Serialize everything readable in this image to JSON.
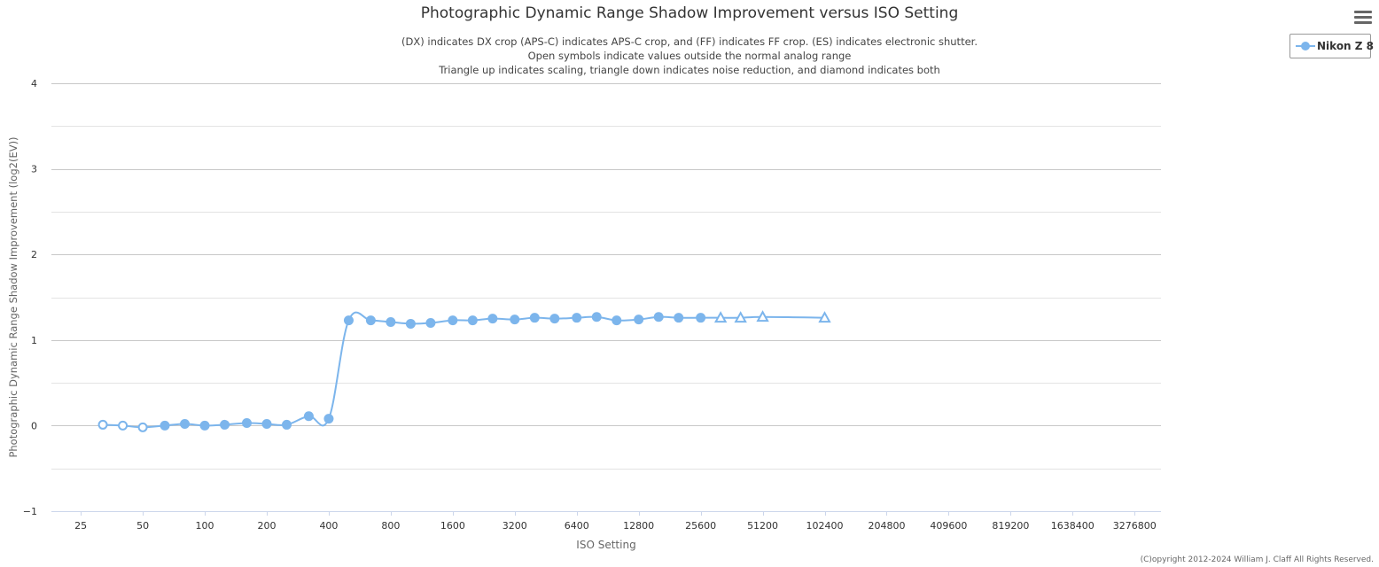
{
  "title": "Photographic Dynamic Range Shadow Improvement versus ISO Setting",
  "subtitle_lines": [
    "(DX) indicates DX crop (APS-C) indicates APS-C crop, and (FF) indicates FF crop. (ES) indicates electronic shutter.",
    "Open symbols indicate values outside the normal analog range",
    "Triangle up indicates scaling, triangle down indicates noise reduction, and diamond indicates both"
  ],
  "copyright": "(C)opyright 2012-2024 William J. Claff All Rights Reserved.",
  "menu": {
    "icon": "hamburger-menu-icon"
  },
  "colors": {
    "series": "#7cb5ec",
    "grid": "#d8d8d8",
    "axis_line": "#ccd6eb",
    "text": "#333333"
  },
  "chart_data": {
    "type": "line",
    "title": "Photographic Dynamic Range Shadow Improvement versus ISO Setting",
    "xlabel": "ISO Setting",
    "ylabel": "Photographic Dynamic Range Shadow Improvement (log2(EV))",
    "x_scale": "log2",
    "xlim": [
      18,
      4400000
    ],
    "ylim": [
      -1,
      4
    ],
    "y_ticks": [
      -1,
      0,
      1,
      2,
      3,
      4
    ],
    "x_ticks": [
      25,
      50,
      100,
      200,
      400,
      800,
      1600,
      3200,
      6400,
      12800,
      25600,
      51200,
      102400,
      204800,
      409600,
      819200,
      1638400,
      3276800
    ],
    "grid": true,
    "legend_position": "top-right",
    "series": [
      {
        "name": "Nikon Z 8",
        "color": "#7cb5ec",
        "points": [
          {
            "x": 32,
            "y": 0.01,
            "marker": "open-circle"
          },
          {
            "x": 40,
            "y": 0.0,
            "marker": "open-circle"
          },
          {
            "x": 50,
            "y": -0.02,
            "marker": "open-circle"
          },
          {
            "x": 64,
            "y": 0.0,
            "marker": "circle"
          },
          {
            "x": 80,
            "y": 0.02,
            "marker": "circle"
          },
          {
            "x": 100,
            "y": 0.0,
            "marker": "circle"
          },
          {
            "x": 125,
            "y": 0.01,
            "marker": "circle"
          },
          {
            "x": 160,
            "y": 0.03,
            "marker": "circle"
          },
          {
            "x": 200,
            "y": 0.02,
            "marker": "circle"
          },
          {
            "x": 250,
            "y": 0.01,
            "marker": "circle"
          },
          {
            "x": 320,
            "y": 0.11,
            "marker": "circle"
          },
          {
            "x": 400,
            "y": 0.08,
            "marker": "circle"
          },
          {
            "x": 500,
            "y": 1.23,
            "marker": "circle"
          },
          {
            "x": 640,
            "y": 1.23,
            "marker": "circle"
          },
          {
            "x": 800,
            "y": 1.21,
            "marker": "circle"
          },
          {
            "x": 1000,
            "y": 1.19,
            "marker": "circle"
          },
          {
            "x": 1250,
            "y": 1.2,
            "marker": "circle"
          },
          {
            "x": 1600,
            "y": 1.23,
            "marker": "circle"
          },
          {
            "x": 2000,
            "y": 1.23,
            "marker": "circle"
          },
          {
            "x": 2500,
            "y": 1.25,
            "marker": "circle"
          },
          {
            "x": 3200,
            "y": 1.24,
            "marker": "circle"
          },
          {
            "x": 4000,
            "y": 1.26,
            "marker": "circle"
          },
          {
            "x": 5000,
            "y": 1.25,
            "marker": "circle"
          },
          {
            "x": 6400,
            "y": 1.26,
            "marker": "circle"
          },
          {
            "x": 8000,
            "y": 1.27,
            "marker": "circle"
          },
          {
            "x": 10000,
            "y": 1.23,
            "marker": "circle"
          },
          {
            "x": 12800,
            "y": 1.24,
            "marker": "circle"
          },
          {
            "x": 16000,
            "y": 1.27,
            "marker": "circle"
          },
          {
            "x": 20000,
            "y": 1.26,
            "marker": "circle"
          },
          {
            "x": 25600,
            "y": 1.26,
            "marker": "circle"
          },
          {
            "x": 32000,
            "y": 1.26,
            "marker": "open-triangle-up"
          },
          {
            "x": 40000,
            "y": 1.26,
            "marker": "open-triangle-up"
          },
          {
            "x": 51200,
            "y": 1.27,
            "marker": "open-triangle-up"
          },
          {
            "x": 102400,
            "y": 1.26,
            "marker": "open-triangle-up"
          }
        ]
      }
    ]
  }
}
